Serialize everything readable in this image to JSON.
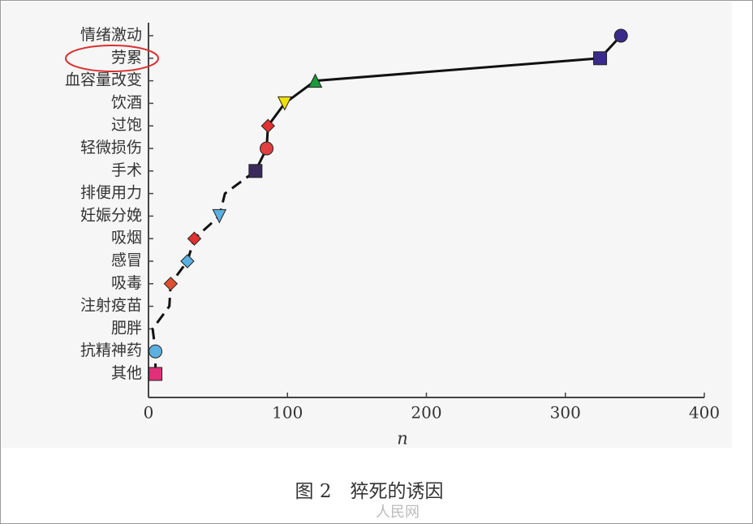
{
  "chart_data": {
    "type": "line",
    "xlabel": "n",
    "categories": [
      "情绪激动",
      "劳累",
      "血容量改变",
      "饮酒",
      "过饱",
      "轻微损伤",
      "手术",
      "排便用力",
      "妊娠分娩",
      "吸烟",
      "感冒",
      "吸毒",
      "注射疫苗",
      "肥胖",
      "抗精神药",
      "其他"
    ],
    "values": [
      340,
      325,
      120,
      98,
      86,
      85,
      77,
      55,
      51,
      33,
      28,
      16,
      15,
      3,
      5,
      5
    ],
    "markers": [
      {
        "shape": "circle",
        "color": "#3a2a8c"
      },
      {
        "shape": "square",
        "color": "#3a2a8c"
      },
      {
        "shape": "triangle",
        "color": "#1a9a3a"
      },
      {
        "shape": "triangle-down",
        "color": "#f0e000"
      },
      {
        "shape": "diamond",
        "color": "#e03030"
      },
      {
        "shape": "circle",
        "color": "#e04040"
      },
      {
        "shape": "square",
        "color": "#3a2a5c"
      },
      null,
      {
        "shape": "triangle-down",
        "color": "#5ab0e0"
      },
      {
        "shape": "diamond",
        "color": "#e03030"
      },
      {
        "shape": "diamond",
        "color": "#5ab0e0"
      },
      {
        "shape": "diamond",
        "color": "#e05030"
      },
      null,
      null,
      {
        "shape": "circle",
        "color": "#5ab0e0"
      },
      {
        "shape": "square",
        "color": "#e0307a"
      }
    ],
    "xlim": [
      0,
      400
    ],
    "xticks": [
      0,
      100,
      200,
      300,
      400
    ],
    "caption": "图 2　猝死的诱因",
    "watermark": "人民网"
  }
}
